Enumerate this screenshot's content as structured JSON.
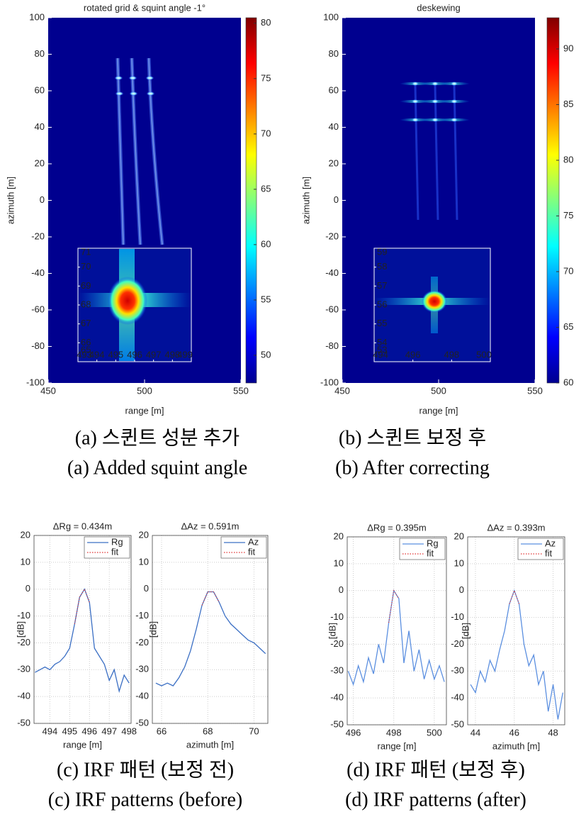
{
  "chart_data": [
    {
      "type": "heatmap",
      "title": "rotated grid & squint angle -1°",
      "xlabel": "range [m]",
      "ylabel": "azimuth [m]",
      "xlim": [
        450,
        550
      ],
      "xticks": [
        450,
        500,
        550
      ],
      "ylim": [
        -100,
        100
      ],
      "yticks": [
        -100,
        -80,
        -60,
        -40,
        -20,
        0,
        20,
        40,
        60,
        80,
        100
      ],
      "colorbar": {
        "lim": [
          47.5,
          80.5
        ],
        "ticks": [
          50,
          55,
          60,
          65,
          70,
          75,
          80
        ]
      },
      "inset": {
        "xlim": [
          493,
          499
        ],
        "xticks": [
          493,
          494,
          495,
          496,
          497,
          498,
          499
        ],
        "ylim": [
          65,
          71
        ],
        "yticks": [
          65,
          66,
          67,
          68,
          69,
          70,
          71
        ]
      }
    },
    {
      "type": "heatmap",
      "title": "deskewing",
      "xlabel": "range [m]",
      "ylabel": "azimuth [m]",
      "xlim": [
        450,
        550
      ],
      "xticks": [
        450,
        500,
        550
      ],
      "ylim": [
        -100,
        100
      ],
      "yticks": [
        -100,
        -80,
        -60,
        -40,
        -20,
        0,
        20,
        40,
        60,
        80,
        100
      ],
      "colorbar": {
        "lim": [
          60,
          92.8
        ],
        "ticks": [
          60,
          65,
          70,
          75,
          80,
          85,
          90
        ]
      },
      "inset": {
        "xlim": [
          494,
          500
        ],
        "xticks": [
          494,
          496,
          498,
          500
        ],
        "ylim": [
          53,
          59
        ],
        "yticks": [
          53,
          54,
          55,
          56,
          57,
          58,
          59
        ]
      }
    },
    {
      "type": "line",
      "title": "ΔRg = 0.434m",
      "xlabel": "range [m]",
      "ylabel": "[dB]",
      "xlim": [
        493.2,
        498.1
      ],
      "xticks": [
        494,
        495,
        496,
        497,
        498
      ],
      "ylim": [
        -50,
        20
      ],
      "yticks": [
        -50,
        -40,
        -30,
        -20,
        -10,
        0,
        10,
        20
      ],
      "grid": true,
      "x": [
        493.25,
        493.5,
        493.75,
        494,
        494.25,
        494.5,
        494.75,
        495,
        495.25,
        495.5,
        495.75,
        496,
        496.25,
        496.5,
        496.75,
        497,
        497.25,
        497.5,
        497.75,
        498
      ],
      "series": [
        {
          "name": "Rg",
          "color": "#3b6fc4",
          "values": [
            -31,
            -30,
            -29,
            -30,
            -28,
            -27,
            -25,
            -22,
            -13,
            -3,
            0,
            -5,
            -22,
            -25,
            -28,
            -34,
            -30,
            -38,
            -32,
            -35
          ]
        },
        {
          "name": "fit",
          "color": "#e03030",
          "values": [
            null,
            null,
            null,
            null,
            null,
            null,
            null,
            null,
            -13,
            -3,
            0,
            -5,
            null,
            null,
            null,
            null,
            null,
            null,
            null,
            null
          ]
        }
      ]
    },
    {
      "type": "line",
      "title": "ΔAz = 0.591m",
      "xlabel": "azimuth [m]",
      "ylabel": "[dB]",
      "xlim": [
        65.6,
        70.6
      ],
      "xticks": [
        66,
        68,
        70
      ],
      "ylim": [
        -50,
        20
      ],
      "yticks": [
        -50,
        -40,
        -30,
        -20,
        -10,
        0,
        10,
        20
      ],
      "grid": true,
      "x": [
        65.75,
        66,
        66.25,
        66.5,
        66.75,
        67,
        67.25,
        67.5,
        67.75,
        68,
        68.25,
        68.5,
        68.75,
        69,
        69.25,
        69.5,
        69.75,
        70,
        70.25,
        70.5
      ],
      "series": [
        {
          "name": "Az",
          "color": "#3b6fc4",
          "values": [
            -35,
            -36,
            -35,
            -36,
            -33,
            -29,
            -23,
            -15,
            -6,
            -1,
            -1,
            -5,
            -10,
            -13,
            -15,
            -17,
            -19,
            -20,
            -22,
            -24
          ]
        },
        {
          "name": "fit",
          "color": "#e03030",
          "values": [
            null,
            null,
            null,
            null,
            null,
            null,
            null,
            null,
            -6,
            -1,
            -1,
            -5,
            null,
            null,
            null,
            null,
            null,
            null,
            null,
            null
          ]
        }
      ]
    },
    {
      "type": "line",
      "title": "ΔRg = 0.395m",
      "xlabel": "range [m]",
      "ylabel": "[dB]",
      "xlim": [
        495.7,
        500.6
      ],
      "xticks": [
        496,
        498,
        500
      ],
      "ylim": [
        -50,
        20
      ],
      "yticks": [
        -50,
        -40,
        -30,
        -20,
        -10,
        0,
        10,
        20
      ],
      "grid": true,
      "x": [
        495.75,
        496,
        496.25,
        496.5,
        496.75,
        497,
        497.25,
        497.5,
        497.75,
        498,
        498.25,
        498.5,
        498.75,
        499,
        499.25,
        499.5,
        499.75,
        500,
        500.25,
        500.5
      ],
      "series": [
        {
          "name": "Rg",
          "color": "#5b8fe0",
          "values": [
            -30,
            -35,
            -28,
            -34,
            -25,
            -31,
            -20,
            -27,
            -12,
            0,
            -3,
            -27,
            -15,
            -30,
            -22,
            -33,
            -26,
            -33,
            -28,
            -34
          ]
        },
        {
          "name": "fit",
          "color": "#e03030",
          "values": [
            null,
            null,
            null,
            null,
            null,
            null,
            null,
            null,
            -12,
            0,
            -3,
            null,
            null,
            null,
            null,
            null,
            null,
            null,
            null,
            null
          ]
        }
      ]
    },
    {
      "type": "line",
      "title": "ΔAz = 0.393m",
      "xlabel": "azimuth [m]",
      "ylabel": "[dB]",
      "xlim": [
        43.6,
        48.6
      ],
      "xticks": [
        44,
        46,
        48
      ],
      "ylim": [
        -50,
        20
      ],
      "yticks": [
        -50,
        -40,
        -30,
        -20,
        -10,
        0,
        10,
        20
      ],
      "grid": true,
      "x": [
        43.75,
        44,
        44.25,
        44.5,
        44.75,
        45,
        45.25,
        45.5,
        45.75,
        46,
        46.25,
        46.5,
        46.75,
        47,
        47.25,
        47.5,
        47.75,
        48,
        48.25,
        48.5
      ],
      "series": [
        {
          "name": "Az",
          "color": "#5b8fe0",
          "values": [
            -35,
            -38,
            -30,
            -34,
            -26,
            -30,
            -22,
            -15,
            -5,
            0,
            -5,
            -20,
            -28,
            -24,
            -35,
            -30,
            -45,
            -35,
            -48,
            -38
          ]
        },
        {
          "name": "fit",
          "color": "#e03030",
          "values": [
            null,
            null,
            null,
            null,
            null,
            null,
            null,
            null,
            -5,
            0,
            -5,
            null,
            null,
            null,
            null,
            null,
            null,
            null,
            null,
            null
          ]
        }
      ]
    }
  ],
  "captions": [
    {
      "ko": "(a) 스퀸트 성분 추가",
      "en": "(a) Added squint angle"
    },
    {
      "ko": "(b) 스퀸트 보정 후",
      "en": "(b) After correcting"
    },
    {
      "ko": "(c) IRF 패턴 (보정 전)",
      "en": "(c) IRF patterns (before)"
    },
    {
      "ko": "(d) IRF 패턴 (보정 후)",
      "en": "(d) IRF patterns (after)"
    }
  ]
}
